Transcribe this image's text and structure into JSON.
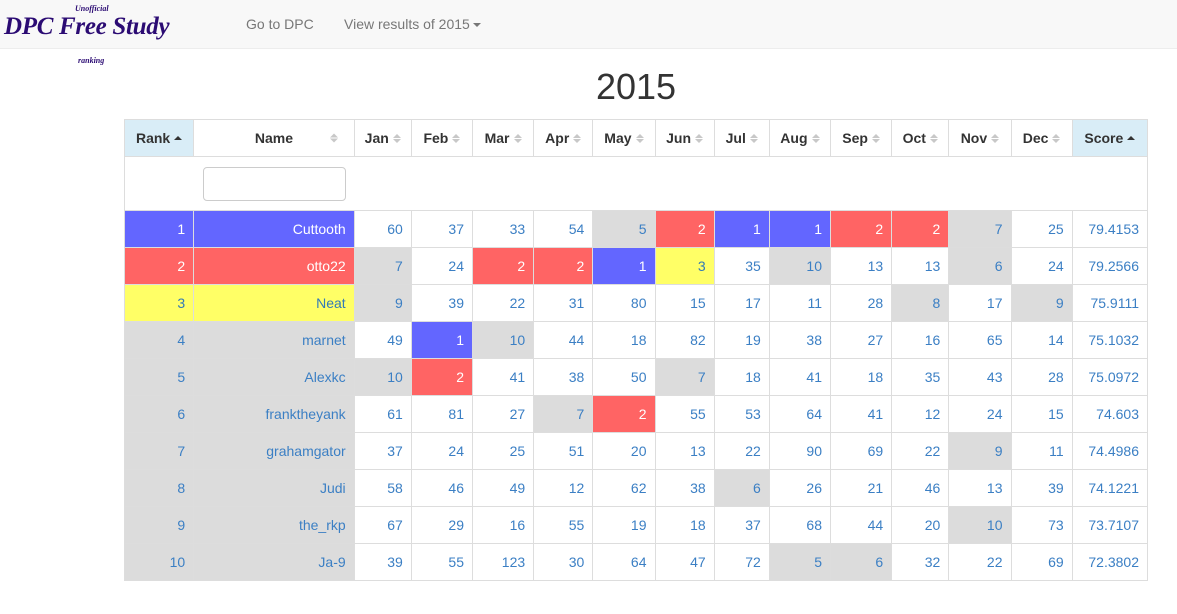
{
  "brand": {
    "top": "Unofficial",
    "main": "DPC Free Study",
    "bottom": "ranking"
  },
  "nav": {
    "go_to": "Go to DPC",
    "view_results": "View results of 2015"
  },
  "title": "2015",
  "headers": [
    "Rank",
    "Name",
    "Jan",
    "Feb",
    "Mar",
    "Apr",
    "May",
    "Jun",
    "Jul",
    "Aug",
    "Sep",
    "Oct",
    "Nov",
    "Dec",
    "Score"
  ],
  "filter": {
    "value": "",
    "placeholder": ""
  },
  "cell_colors": {
    "blue": "#6366ff",
    "red": "#ff6464",
    "yellow": "#ffff66",
    "gray": "#dcdcdc",
    "sorted_header": "#d9edf7",
    "link": "#3b7fc4"
  },
  "rows": [
    {
      "rank": "1",
      "name": "Cuttooth",
      "months": [
        "60",
        "37",
        "33",
        "54",
        "5",
        "2",
        "1",
        "1",
        "2",
        "2",
        "7",
        "25"
      ],
      "score": "79.4153"
    },
    {
      "rank": "2",
      "name": "otto22",
      "months": [
        "7",
        "24",
        "2",
        "2",
        "1",
        "3",
        "35",
        "10",
        "13",
        "13",
        "6",
        "24"
      ],
      "score": "79.2566"
    },
    {
      "rank": "3",
      "name": "Neat",
      "months": [
        "9",
        "39",
        "22",
        "31",
        "80",
        "15",
        "17",
        "11",
        "28",
        "8",
        "17",
        "9"
      ],
      "score": "75.9111"
    },
    {
      "rank": "4",
      "name": "marnet",
      "months": [
        "49",
        "1",
        "10",
        "44",
        "18",
        "82",
        "19",
        "38",
        "27",
        "16",
        "65",
        "14"
      ],
      "score": "75.1032"
    },
    {
      "rank": "5",
      "name": "Alexkc",
      "months": [
        "10",
        "2",
        "41",
        "38",
        "50",
        "7",
        "18",
        "41",
        "18",
        "35",
        "43",
        "28"
      ],
      "score": "75.0972"
    },
    {
      "rank": "6",
      "name": "franktheyank",
      "months": [
        "61",
        "81",
        "27",
        "7",
        "2",
        "55",
        "53",
        "64",
        "41",
        "12",
        "24",
        "15"
      ],
      "score": "74.603"
    },
    {
      "rank": "7",
      "name": "grahamgator",
      "months": [
        "37",
        "24",
        "25",
        "51",
        "20",
        "13",
        "22",
        "90",
        "69",
        "22",
        "9",
        "11"
      ],
      "score": "74.4986"
    },
    {
      "rank": "8",
      "name": "Judi",
      "months": [
        "58",
        "46",
        "49",
        "12",
        "62",
        "38",
        "6",
        "26",
        "21",
        "46",
        "13",
        "39"
      ],
      "score": "74.1221"
    },
    {
      "rank": "9",
      "name": "the_rkp",
      "months": [
        "67",
        "29",
        "16",
        "55",
        "19",
        "18",
        "37",
        "68",
        "44",
        "20",
        "10",
        "73"
      ],
      "score": "73.7107"
    },
    {
      "rank": "10",
      "name": "Ja-9",
      "months": [
        "39",
        "55",
        "123",
        "30",
        "64",
        "47",
        "72",
        "5",
        "6",
        "32",
        "22",
        "69"
      ],
      "score": "72.3802"
    }
  ]
}
